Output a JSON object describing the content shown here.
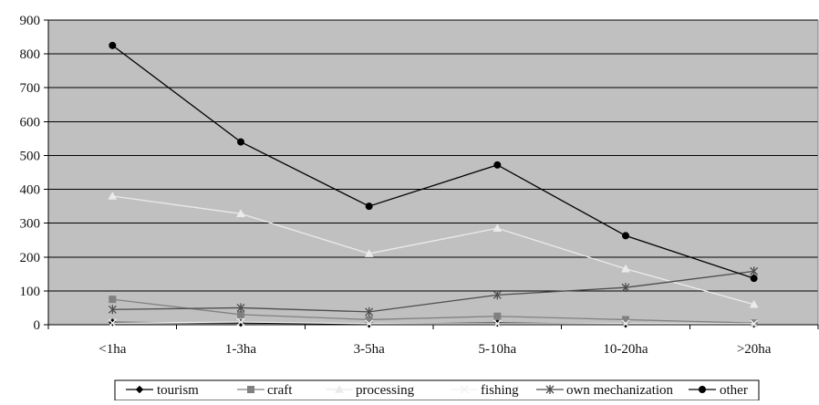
{
  "chart_data": {
    "type": "line",
    "title": "",
    "xlabel": "",
    "ylabel": "",
    "categories": [
      "<1ha",
      "1-3ha",
      "3-5ha",
      "5-10ha",
      "10-20ha",
      ">20ha"
    ],
    "ylim": [
      0,
      900
    ],
    "yticks": [
      0,
      100,
      200,
      300,
      400,
      500,
      600,
      700,
      800,
      900
    ],
    "grid": true,
    "legend_position": "bottom",
    "plot_background": "#c0c0c0",
    "series": [
      {
        "name": "tourism",
        "marker": "diamond",
        "color": "#000000",
        "values": [
          7,
          5,
          2,
          5,
          2,
          2
        ]
      },
      {
        "name": "craft",
        "marker": "square",
        "color": "#808080",
        "values": [
          75,
          30,
          15,
          25,
          15,
          5
        ]
      },
      {
        "name": "processing",
        "marker": "triangle",
        "color": "#ebebeb",
        "values": [
          380,
          328,
          210,
          285,
          165,
          60
        ]
      },
      {
        "name": "fishing",
        "marker": "x",
        "color": "#f2f2f2",
        "values": [
          5,
          8,
          3,
          3,
          3,
          3
        ]
      },
      {
        "name": "own mechanization",
        "marker": "star",
        "color": "#4d4d4d",
        "values": [
          45,
          50,
          38,
          88,
          110,
          158
        ]
      },
      {
        "name": "other",
        "marker": "circle",
        "color": "#000000",
        "values": [
          825,
          540,
          350,
          472,
          263,
          137
        ]
      }
    ]
  }
}
